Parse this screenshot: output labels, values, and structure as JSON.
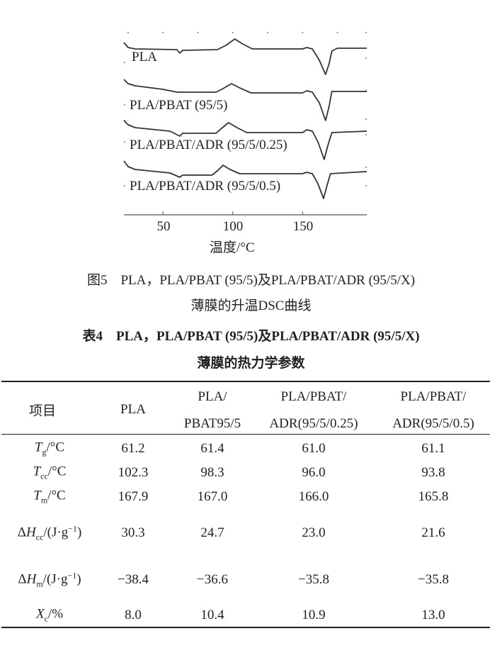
{
  "chart_data": {
    "type": "line",
    "xlabel": "温度/°C",
    "ylabel": "",
    "xlim": [
      22,
      196
    ],
    "x_ticks": [
      "50",
      "100",
      "150"
    ],
    "grid": false,
    "series": [
      {
        "name": "PLA",
        "points": [
          [
            22,
            10
          ],
          [
            25,
            3
          ],
          [
            30,
            1
          ],
          [
            60,
            0
          ],
          [
            62,
            -5
          ],
          [
            64,
            -1
          ],
          [
            89,
            0
          ],
          [
            95,
            6
          ],
          [
            101.5,
            15
          ],
          [
            107,
            8
          ],
          [
            114,
            1
          ],
          [
            150,
            1
          ],
          [
            153,
            3
          ],
          [
            157,
            1
          ],
          [
            162,
            -15
          ],
          [
            166.5,
            -35
          ],
          [
            169,
            -20
          ],
          [
            171,
            -2
          ],
          [
            175,
            2
          ],
          [
            196,
            2
          ]
        ]
      },
      {
        "name": "PLA/PBAT (95/5)",
        "points": [
          [
            22,
            18
          ],
          [
            25,
            12
          ],
          [
            30,
            9
          ],
          [
            50,
            4
          ],
          [
            60,
            0
          ],
          [
            88,
            0
          ],
          [
            93,
            5
          ],
          [
            99,
            12
          ],
          [
            105,
            6
          ],
          [
            113,
            -1
          ],
          [
            150,
            -1
          ],
          [
            153,
            2
          ],
          [
            157,
            0
          ],
          [
            162,
            -15
          ],
          [
            166.5,
            -40
          ],
          [
            169,
            -20
          ],
          [
            171,
            1
          ],
          [
            196,
            1
          ]
        ]
      },
      {
        "name": "PLA/PBAT/ADR (95/5/0.25)",
        "points": [
          [
            22,
            18
          ],
          [
            25,
            12
          ],
          [
            30,
            8
          ],
          [
            55,
            3
          ],
          [
            62,
            -4
          ],
          [
            64,
            0
          ],
          [
            88,
            0
          ],
          [
            92,
            7
          ],
          [
            97,
            15
          ],
          [
            103,
            8
          ],
          [
            110,
            1
          ],
          [
            150,
            1
          ],
          [
            153,
            5
          ],
          [
            157,
            3
          ],
          [
            161,
            -12
          ],
          [
            165.5,
            -37
          ],
          [
            168,
            -18
          ],
          [
            171,
            1
          ],
          [
            196,
            3
          ]
        ]
      },
      {
        "name": "PLA/PBAT/ADR (95/5/0.5)",
        "points": [
          [
            22,
            20
          ],
          [
            25,
            12
          ],
          [
            30,
            8
          ],
          [
            55,
            3
          ],
          [
            62,
            -3
          ],
          [
            64,
            0
          ],
          [
            85,
            0
          ],
          [
            89,
            6
          ],
          [
            93,
            14
          ],
          [
            98,
            8
          ],
          [
            105,
            2
          ],
          [
            150,
            2
          ],
          [
            153,
            4
          ],
          [
            157,
            2
          ],
          [
            161,
            -12
          ],
          [
            165,
            -33
          ],
          [
            167.5,
            -15
          ],
          [
            170,
            2
          ],
          [
            196,
            5
          ]
        ]
      }
    ]
  },
  "figure_caption": {
    "line1": "图5　PLA，PLA/PBAT (95/5)及PLA/PBAT/ADR (95/5/X)",
    "line2": "薄膜的升温DSC曲线"
  },
  "table_title": {
    "line1": "表4　PLA，PLA/PBAT (95/5)及PLA/PBAT/ADR (95/5/X)",
    "line2": "薄膜的热力学参数"
  },
  "table": {
    "headers": [
      {
        "line1": "项目"
      },
      {
        "line1": "PLA"
      },
      {
        "line1": "PLA/",
        "line2": "PBAT95/5"
      },
      {
        "line1": "PLA/PBAT/",
        "line2": "ADR(95/5/0.25)"
      },
      {
        "line1": "PLA/PBAT/",
        "line2": "ADR(95/5/0.5)"
      }
    ],
    "rows": [
      {
        "sym": "T",
        "sub": "g",
        "unit": "/°C",
        "values": [
          "61.2",
          "61.4",
          "61.0",
          "61.1"
        ]
      },
      {
        "sym": "T",
        "sub": "cc",
        "unit": "/°C",
        "values": [
          "102.3",
          "98.3",
          "96.0",
          "93.8"
        ]
      },
      {
        "sym": "T",
        "sub": "m",
        "unit": "/°C",
        "values": [
          "167.9",
          "167.0",
          "166.0",
          "165.8"
        ]
      },
      {
        "pre": "Δ",
        "sym": "H",
        "sub": "cc",
        "unit": "/(J·g",
        "sup": "−1",
        "close": ")",
        "values": [
          "30.3",
          "24.7",
          "23.0",
          "21.6"
        ]
      },
      {
        "pre": "Δ",
        "sym": "H",
        "sub": "m",
        "unit": "/(J·g",
        "sup": "−1",
        "close": ")",
        "values": [
          "−38.4",
          "−36.6",
          "−35.8",
          "−35.8"
        ]
      },
      {
        "sym": "X",
        "sub": "c",
        "unit": "/%",
        "values": [
          "8.0",
          "10.4",
          "10.9",
          "13.0"
        ]
      }
    ]
  }
}
